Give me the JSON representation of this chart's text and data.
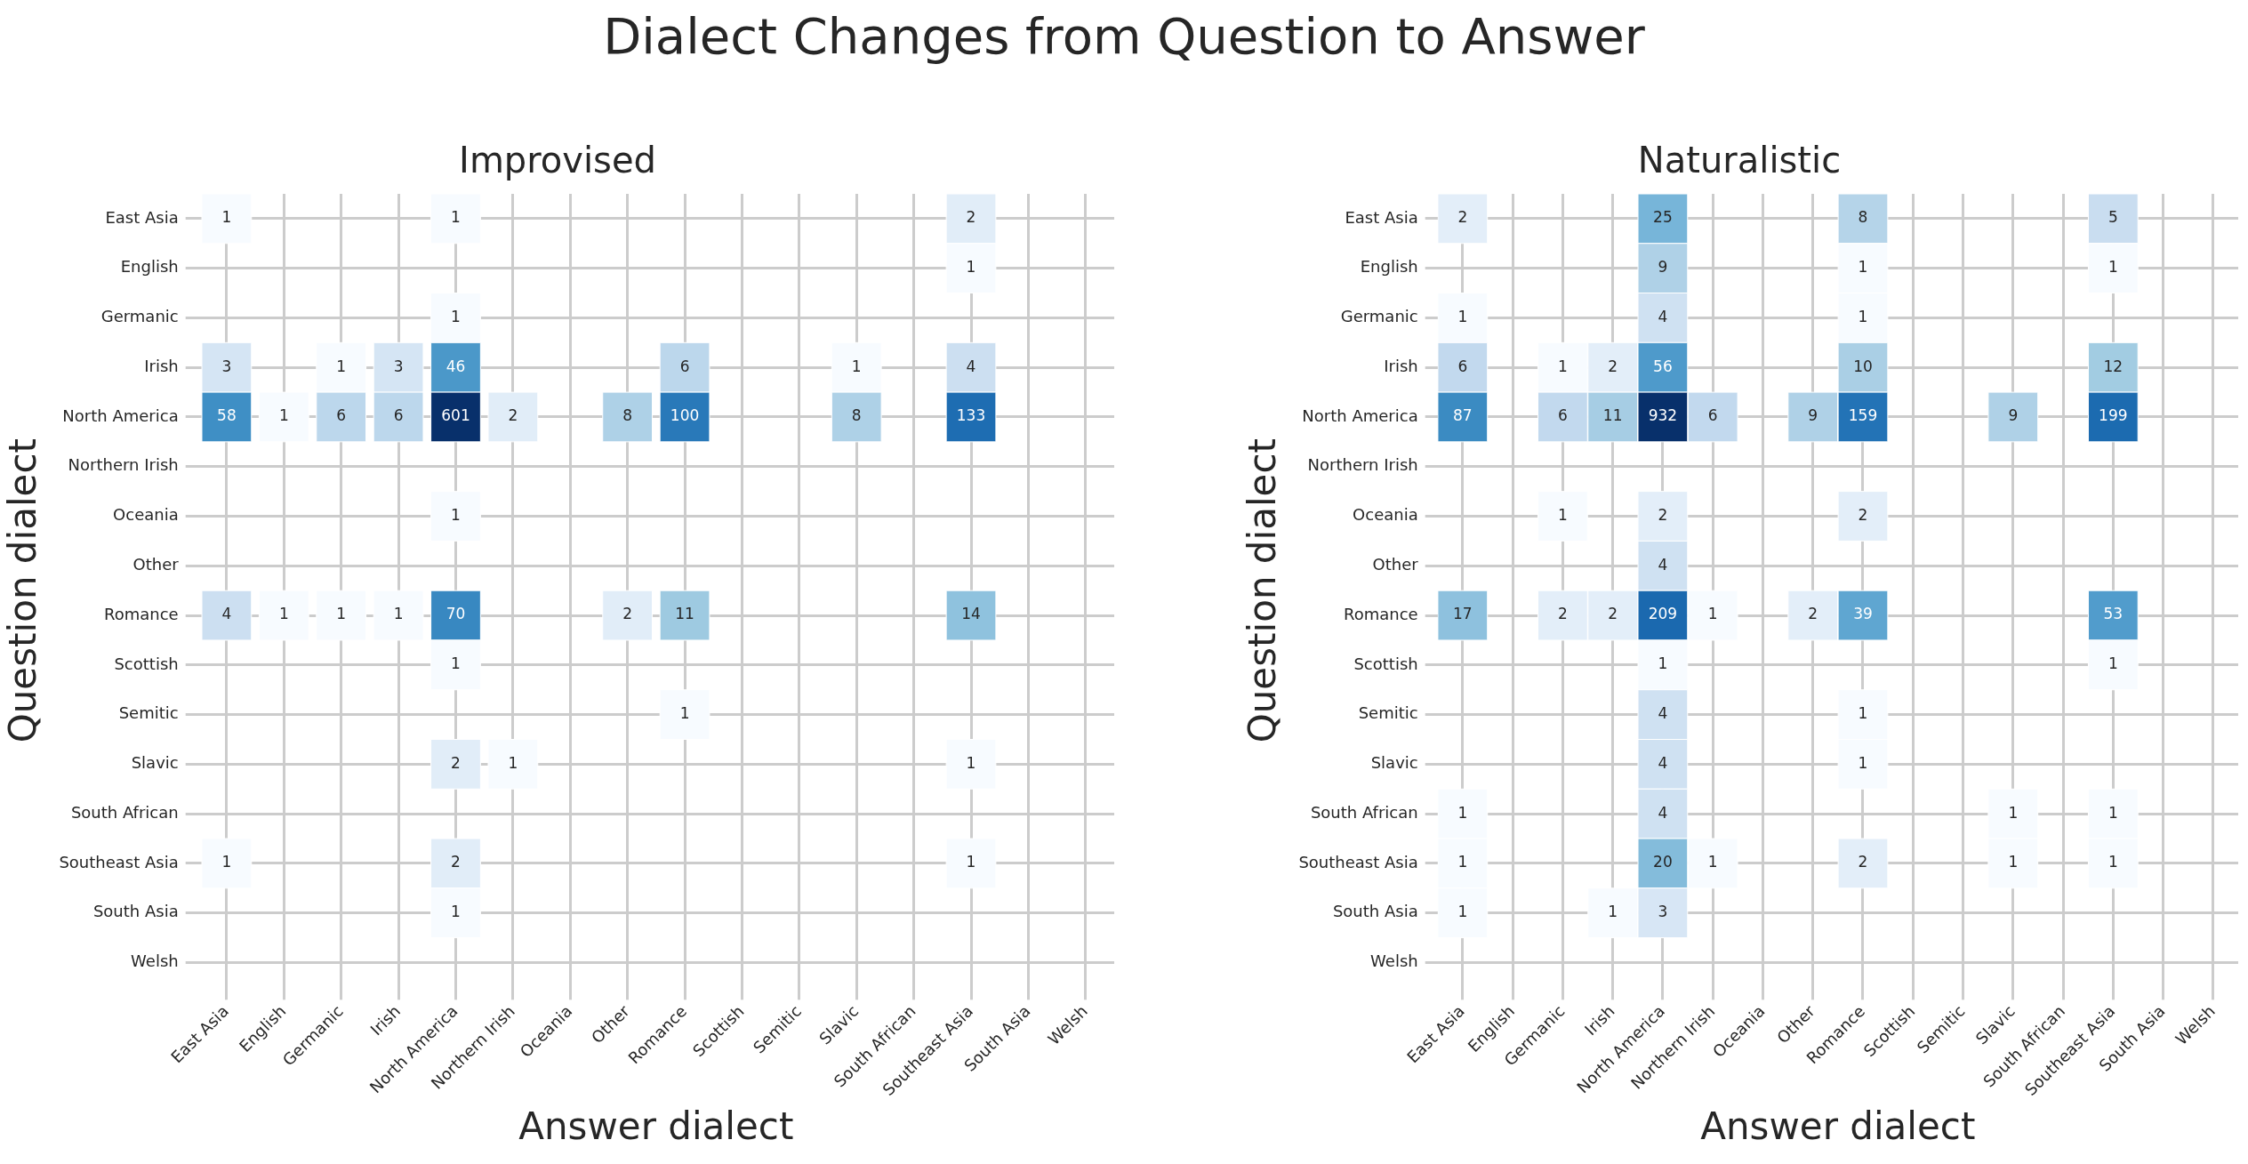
{
  "chart_data": [
    {
      "type": "other",
      "title": "Dialect Changes from Question to Answer"
    },
    {
      "type": "heatmap",
      "title": "Improvised",
      "xlabel": "Answer dialect",
      "ylabel": "Question dialect",
      "grid": true,
      "data_labels": true,
      "categories": [
        "East Asia",
        "English",
        "Germanic",
        "Irish",
        "North America",
        "Northern Irish",
        "Oceania",
        "Other",
        "Romance",
        "Scottish",
        "Semitic",
        "Slavic",
        "South African",
        "Southeast Asia",
        "South Asia",
        "Welsh"
      ],
      "y_categories": [
        "East Asia",
        "English",
        "Germanic",
        "Irish",
        "North America",
        "Northern Irish",
        "Oceania",
        "Other",
        "Romance",
        "Scottish",
        "Semitic",
        "Slavic",
        "South African",
        "Southeast Asia",
        "South Asia",
        "Welsh"
      ],
      "cells": [
        [
          1,
          null,
          null,
          null,
          1,
          null,
          null,
          null,
          null,
          null,
          null,
          null,
          null,
          2,
          null,
          null
        ],
        [
          null,
          null,
          null,
          null,
          null,
          null,
          null,
          null,
          null,
          null,
          null,
          null,
          null,
          1,
          null,
          null
        ],
        [
          null,
          null,
          null,
          null,
          1,
          null,
          null,
          null,
          null,
          null,
          null,
          null,
          null,
          null,
          null,
          null
        ],
        [
          3,
          null,
          1,
          3,
          46,
          null,
          null,
          null,
          6,
          null,
          null,
          1,
          null,
          4,
          null,
          null
        ],
        [
          58,
          1,
          6,
          6,
          601,
          2,
          null,
          8,
          100,
          null,
          null,
          8,
          null,
          133,
          null,
          null
        ],
        [
          null,
          null,
          null,
          null,
          null,
          null,
          null,
          null,
          null,
          null,
          null,
          null,
          null,
          null,
          null,
          null
        ],
        [
          null,
          null,
          null,
          null,
          1,
          null,
          null,
          null,
          null,
          null,
          null,
          null,
          null,
          null,
          null,
          null
        ],
        [
          null,
          null,
          null,
          null,
          null,
          null,
          null,
          null,
          null,
          null,
          null,
          null,
          null,
          null,
          null,
          null
        ],
        [
          4,
          1,
          1,
          1,
          70,
          null,
          null,
          2,
          11,
          null,
          null,
          null,
          null,
          14,
          null,
          null
        ],
        [
          null,
          null,
          null,
          null,
          1,
          null,
          null,
          null,
          null,
          null,
          null,
          null,
          null,
          null,
          null,
          null
        ],
        [
          null,
          null,
          null,
          null,
          null,
          null,
          null,
          null,
          1,
          null,
          null,
          null,
          null,
          null,
          null,
          null
        ],
        [
          null,
          null,
          null,
          null,
          2,
          1,
          null,
          null,
          null,
          null,
          null,
          null,
          null,
          1,
          null,
          null
        ],
        [
          null,
          null,
          null,
          null,
          null,
          null,
          null,
          null,
          null,
          null,
          null,
          null,
          null,
          null,
          null,
          null
        ],
        [
          1,
          null,
          null,
          null,
          2,
          null,
          null,
          null,
          null,
          null,
          null,
          null,
          null,
          1,
          null,
          null
        ],
        [
          null,
          null,
          null,
          null,
          1,
          null,
          null,
          null,
          null,
          null,
          null,
          null,
          null,
          null,
          null,
          null
        ],
        [
          null,
          null,
          null,
          null,
          null,
          null,
          null,
          null,
          null,
          null,
          null,
          null,
          null,
          null,
          null,
          null
        ]
      ]
    },
    {
      "type": "heatmap",
      "title": "Naturalistic",
      "xlabel": "Answer dialect",
      "ylabel": "Question dialect",
      "grid": true,
      "data_labels": true,
      "categories": [
        "East Asia",
        "English",
        "Germanic",
        "Irish",
        "North America",
        "Northern Irish",
        "Oceania",
        "Other",
        "Romance",
        "Scottish",
        "Semitic",
        "Slavic",
        "South African",
        "Southeast Asia",
        "South Asia",
        "Welsh"
      ],
      "y_categories": [
        "East Asia",
        "English",
        "Germanic",
        "Irish",
        "North America",
        "Northern Irish",
        "Oceania",
        "Other",
        "Romance",
        "Scottish",
        "Semitic",
        "Slavic",
        "South African",
        "Southeast Asia",
        "South Asia",
        "Welsh"
      ],
      "cells": [
        [
          2,
          null,
          null,
          null,
          25,
          null,
          null,
          null,
          8,
          null,
          null,
          null,
          null,
          5,
          null,
          null
        ],
        [
          null,
          null,
          null,
          null,
          9,
          null,
          null,
          null,
          1,
          null,
          null,
          null,
          null,
          1,
          null,
          null
        ],
        [
          1,
          null,
          null,
          null,
          4,
          null,
          null,
          null,
          1,
          null,
          null,
          null,
          null,
          null,
          null,
          null
        ],
        [
          6,
          null,
          1,
          2,
          56,
          null,
          null,
          null,
          10,
          null,
          null,
          null,
          null,
          12,
          null,
          null
        ],
        [
          87,
          null,
          6,
          11,
          932,
          6,
          null,
          9,
          159,
          null,
          null,
          9,
          null,
          199,
          null,
          null
        ],
        [
          null,
          null,
          null,
          null,
          null,
          null,
          null,
          null,
          null,
          null,
          null,
          null,
          null,
          null,
          null,
          null
        ],
        [
          null,
          null,
          1,
          null,
          2,
          null,
          null,
          null,
          2,
          null,
          null,
          null,
          null,
          null,
          null,
          null
        ],
        [
          null,
          null,
          null,
          null,
          4,
          null,
          null,
          null,
          null,
          null,
          null,
          null,
          null,
          null,
          null,
          null
        ],
        [
          17,
          null,
          2,
          2,
          209,
          1,
          null,
          2,
          39,
          null,
          null,
          null,
          null,
          53,
          null,
          null
        ],
        [
          null,
          null,
          null,
          null,
          1,
          null,
          null,
          null,
          null,
          null,
          null,
          null,
          null,
          1,
          null,
          null
        ],
        [
          null,
          null,
          null,
          null,
          4,
          null,
          null,
          null,
          1,
          null,
          null,
          null,
          null,
          null,
          null,
          null
        ],
        [
          null,
          null,
          null,
          null,
          4,
          null,
          null,
          null,
          1,
          null,
          null,
          null,
          null,
          null,
          null,
          null
        ],
        [
          1,
          null,
          null,
          null,
          4,
          null,
          null,
          null,
          null,
          null,
          null,
          1,
          null,
          1,
          null,
          null
        ],
        [
          1,
          null,
          null,
          null,
          20,
          1,
          null,
          null,
          2,
          null,
          null,
          1,
          null,
          1,
          null,
          null
        ],
        [
          1,
          null,
          null,
          1,
          3,
          null,
          null,
          null,
          null,
          null,
          null,
          null,
          null,
          null,
          null,
          null
        ],
        [
          null,
          null,
          null,
          null,
          null,
          null,
          null,
          null,
          null,
          null,
          null,
          null,
          null,
          null,
          null,
          null
        ]
      ]
    }
  ]
}
